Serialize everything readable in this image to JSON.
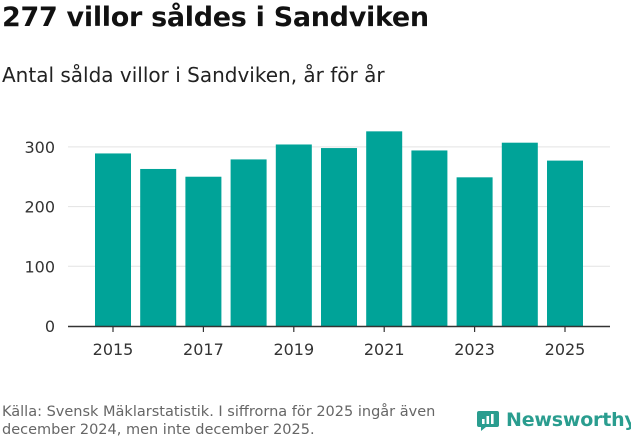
{
  "header": {
    "title": "277 villor såldes i Sandviken",
    "subtitle": "Antal sålda villor i Sandviken, år för år"
  },
  "footer": {
    "source": "Källa: Svensk Mäklarstatistik. I siffrorna för 2025 ingår även december 2024, men inte december 2025.",
    "brand": "Newsworthy"
  },
  "colors": {
    "bar": "#00a398",
    "grid": "#e3e3e3",
    "axis": "#333333",
    "brand": "#2a9d8f"
  },
  "chart_data": {
    "type": "bar",
    "title": "277 villor såldes i Sandviken",
    "subtitle": "Antal sålda villor i Sandviken, år för år",
    "xlabel": "",
    "ylabel": "",
    "categories": [
      "2015",
      "2016",
      "2017",
      "2018",
      "2019",
      "2020",
      "2021",
      "2022",
      "2023",
      "2024",
      "2025"
    ],
    "values": [
      289,
      263,
      250,
      279,
      304,
      298,
      326,
      294,
      249,
      307,
      277
    ],
    "x_tick_labels": [
      "2015",
      "2017",
      "2019",
      "2021",
      "2023",
      "2025"
    ],
    "y_ticks": [
      0,
      100,
      200,
      300
    ],
    "ylim": [
      0,
      345
    ],
    "grid": true,
    "legend": "none"
  }
}
